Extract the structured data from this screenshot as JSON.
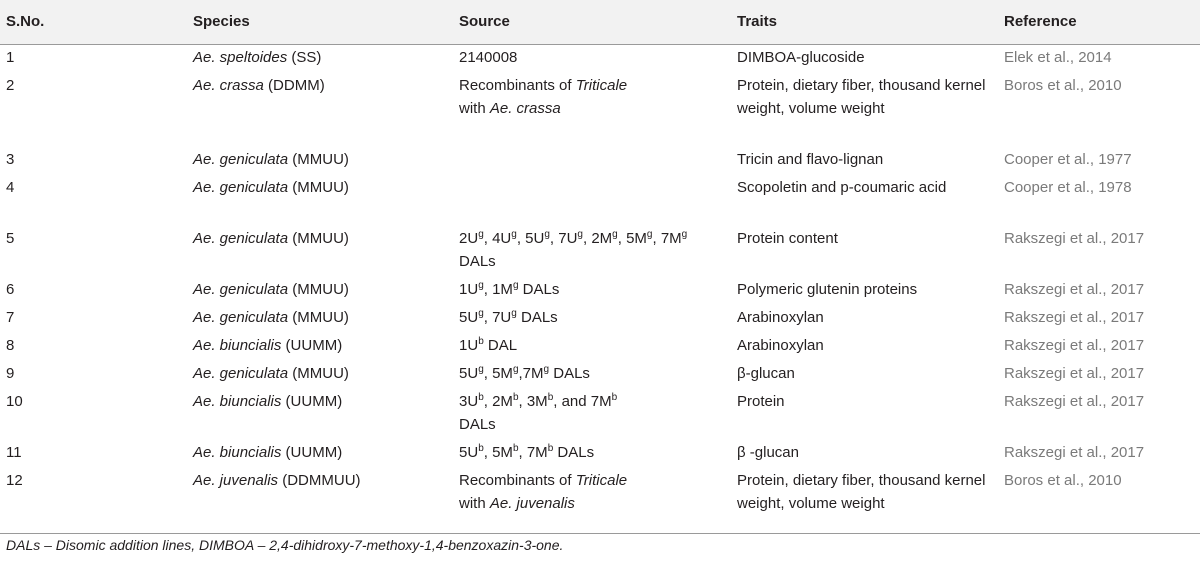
{
  "header": {
    "sno": "S.No.",
    "species": "Species",
    "source": "Source",
    "traits": "Traits",
    "reference": "Reference"
  },
  "rows": [
    {
      "sno": "1",
      "species_it": "Ae. speltoides",
      "species_rest": " (SS)",
      "src": {
        "a": "2140008"
      },
      "traits": "DIMBOA-glucoside",
      "ref": "Elek et al., 2014"
    },
    {
      "sno": "2",
      "species_it": "Ae. crassa",
      "species_rest": " (DDMM)",
      "src": {
        "a": "Recombinants of ",
        "b": "Triticale",
        "c": "with ",
        "d": "Ae. crassa"
      },
      "traits": "Protein, dietary fiber, thousand kernel weight, volume weight",
      "ref": "Boros et al., 2010"
    },
    {
      "sno": "3",
      "species_it": "Ae. geniculata",
      "species_rest": " (MMUU)",
      "src": {},
      "traits": "Tricin and flavo-lignan",
      "ref": "Cooper et al., 1977"
    },
    {
      "sno": "4",
      "species_it": "Ae. geniculata",
      "species_rest": " (MMUU)",
      "src": {},
      "traits": "Scopoletin and p-coumaric acid",
      "ref": "Cooper et al., 1978"
    },
    {
      "sno": "5",
      "species_it": "Ae. geniculata",
      "species_rest": " (MMUU)",
      "src": {
        "t1": "2U",
        "s1": "g",
        "t2": ", 4U",
        "s2": "g",
        "t3": ", 5U",
        "s3": "g",
        "t4": ", 7U",
        "s4": "g",
        "t5": ", 2M",
        "s5": "g",
        "t6": ", 5M",
        "s6": "g",
        "t7": ", 7M",
        "s7": "g",
        "t8": " DALs"
      },
      "traits": "Protein content",
      "ref": "Rakszegi et al., 2017"
    },
    {
      "sno": "6",
      "species_it": "Ae. geniculata",
      "species_rest": " (MMUU)",
      "src": {
        "t1": "1U",
        "s1": "g",
        "t2": ", 1M",
        "s2": "g",
        "t3": " DALs"
      },
      "traits": "Polymeric glutenin proteins",
      "ref": "Rakszegi et al., 2017"
    },
    {
      "sno": "7",
      "species_it": "Ae. geniculata",
      "species_rest": " (MMUU)",
      "src": {
        "t1": "5U",
        "s1": "g",
        "t2": ", 7U",
        "s2": "g",
        "t3": " DALs"
      },
      "traits": "Arabinoxylan",
      "ref": "Rakszegi et al., 2017"
    },
    {
      "sno": "8",
      "species_it": "Ae. biuncialis",
      "species_rest": " (UUMM)",
      "src": {
        "t1": "1U",
        "s1": "b",
        "t2": " DAL"
      },
      "traits": "Arabinoxylan",
      "ref": "Rakszegi et al., 2017"
    },
    {
      "sno": "9",
      "species_it": "Ae. geniculata",
      "species_rest": " (MMUU)",
      "src": {
        "t1": "5U",
        "s1": "g",
        "t2": ", 5M",
        "s2": "g",
        "t3": ",7M",
        "s3": "g",
        "t4": " DALs"
      },
      "traits": "β-glucan",
      "ref": "Rakszegi et al., 2017"
    },
    {
      "sno": "10",
      "species_it": "Ae. biuncialis",
      "species_rest": " (UUMM)",
      "src": {
        "t1": "3U",
        "s1": "b",
        "t2": ", 2M",
        "s2": "b",
        "t3": ", 3M",
        "s3": "b",
        "t4": ", and 7M",
        "s4": "b",
        "t5": " DALs"
      },
      "traits": "Protein",
      "ref": "Rakszegi et al., 2017"
    },
    {
      "sno": "11",
      "species_it": "Ae. biuncialis",
      "species_rest": " (UUMM)",
      "src": {
        "t1": "5U",
        "s1": "b",
        "t2": ", 5M",
        "s2": "b",
        "t3": ", 7M",
        "s3": "b",
        "t4": " DALs"
      },
      "traits": "β -glucan",
      "ref": "Rakszegi et al., 2017"
    },
    {
      "sno": "12",
      "species_it": "Ae. juvenalis",
      "species_rest": " (DDMMUU)",
      "src": {
        "a": "Recombinants of ",
        "b": "Triticale",
        "c": "with ",
        "d": "Ae. juvenalis"
      },
      "traits": "Protein, dietary fiber, thousand kernel weight, volume weight",
      "ref": "Boros et al., 2010"
    }
  ],
  "footnote": "DALs – Disomic addition lines, DIMBOA – 2,4-dihidroxy-7-methoxy-1,4-benzoxazin-3-one."
}
